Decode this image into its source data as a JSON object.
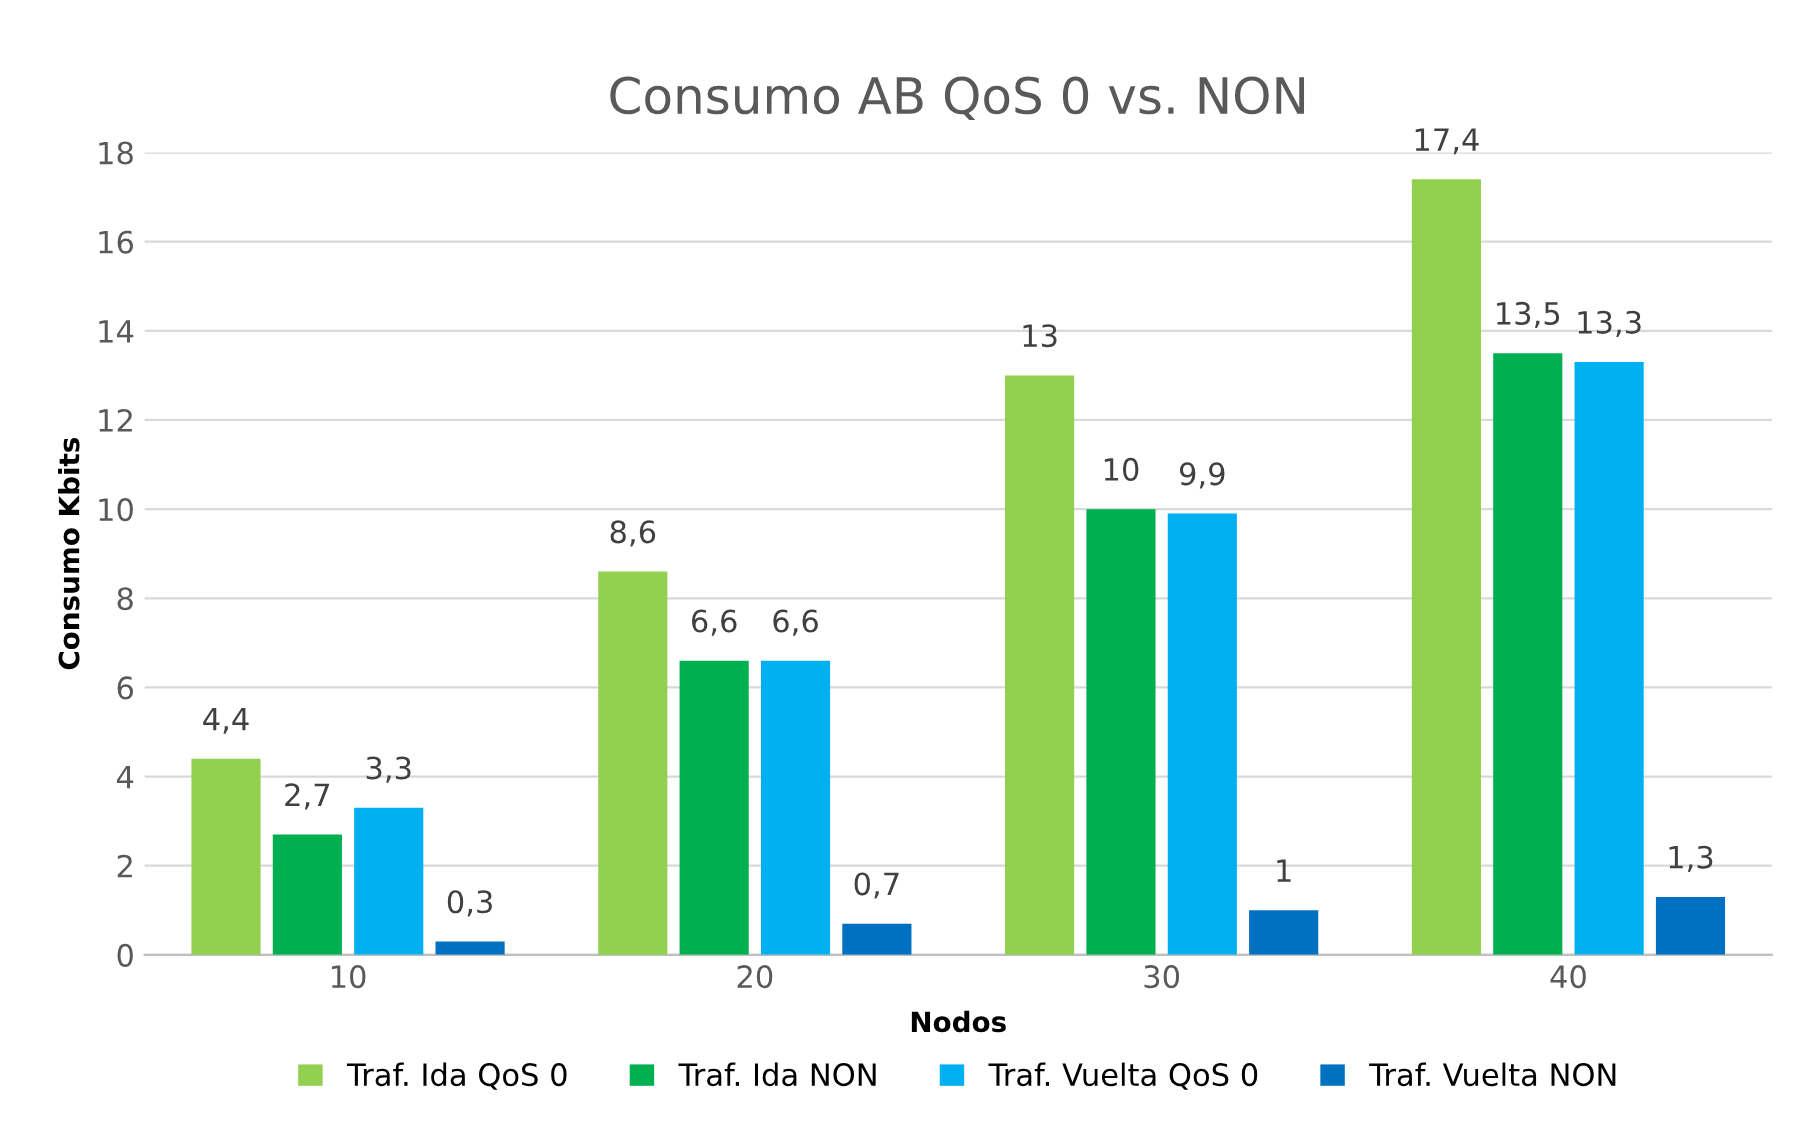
{
  "chart_data": {
    "type": "bar",
    "title": "Consumo AB QoS 0 vs. NON",
    "xlabel": "Nodos",
    "ylabel": "Consumo Kbits",
    "categories": [
      "10",
      "20",
      "30",
      "40"
    ],
    "series": [
      {
        "name": "Traf. Ida QoS 0",
        "color": "#92d050",
        "values": [
          4.4,
          8.6,
          13,
          17.4
        ],
        "value_labels": [
          "4,4",
          "8,6",
          "13",
          "17,4"
        ]
      },
      {
        "name": "Traf. Ida NON",
        "color": "#00b050",
        "values": [
          2.7,
          6.6,
          10,
          13.5
        ],
        "value_labels": [
          "2,7",
          "6,6",
          "10",
          "13,5"
        ]
      },
      {
        "name": "Traf. Vuelta QoS 0",
        "color": "#00b0f0",
        "values": [
          3.3,
          6.6,
          9.9,
          13.3
        ],
        "value_labels": [
          "3,3",
          "6,6",
          "9,9",
          "13,3"
        ]
      },
      {
        "name": "Traf. Vuelta NON",
        "color": "#0070c0",
        "values": [
          0.3,
          0.7,
          1,
          1.3
        ],
        "value_labels": [
          "0,3",
          "0,7",
          "1",
          "1,3"
        ]
      }
    ],
    "ylim": [
      0,
      18
    ],
    "yticks": [
      0,
      2,
      4,
      6,
      8,
      10,
      12,
      14,
      16,
      18
    ],
    "grid": "y",
    "legend": "bottom"
  }
}
